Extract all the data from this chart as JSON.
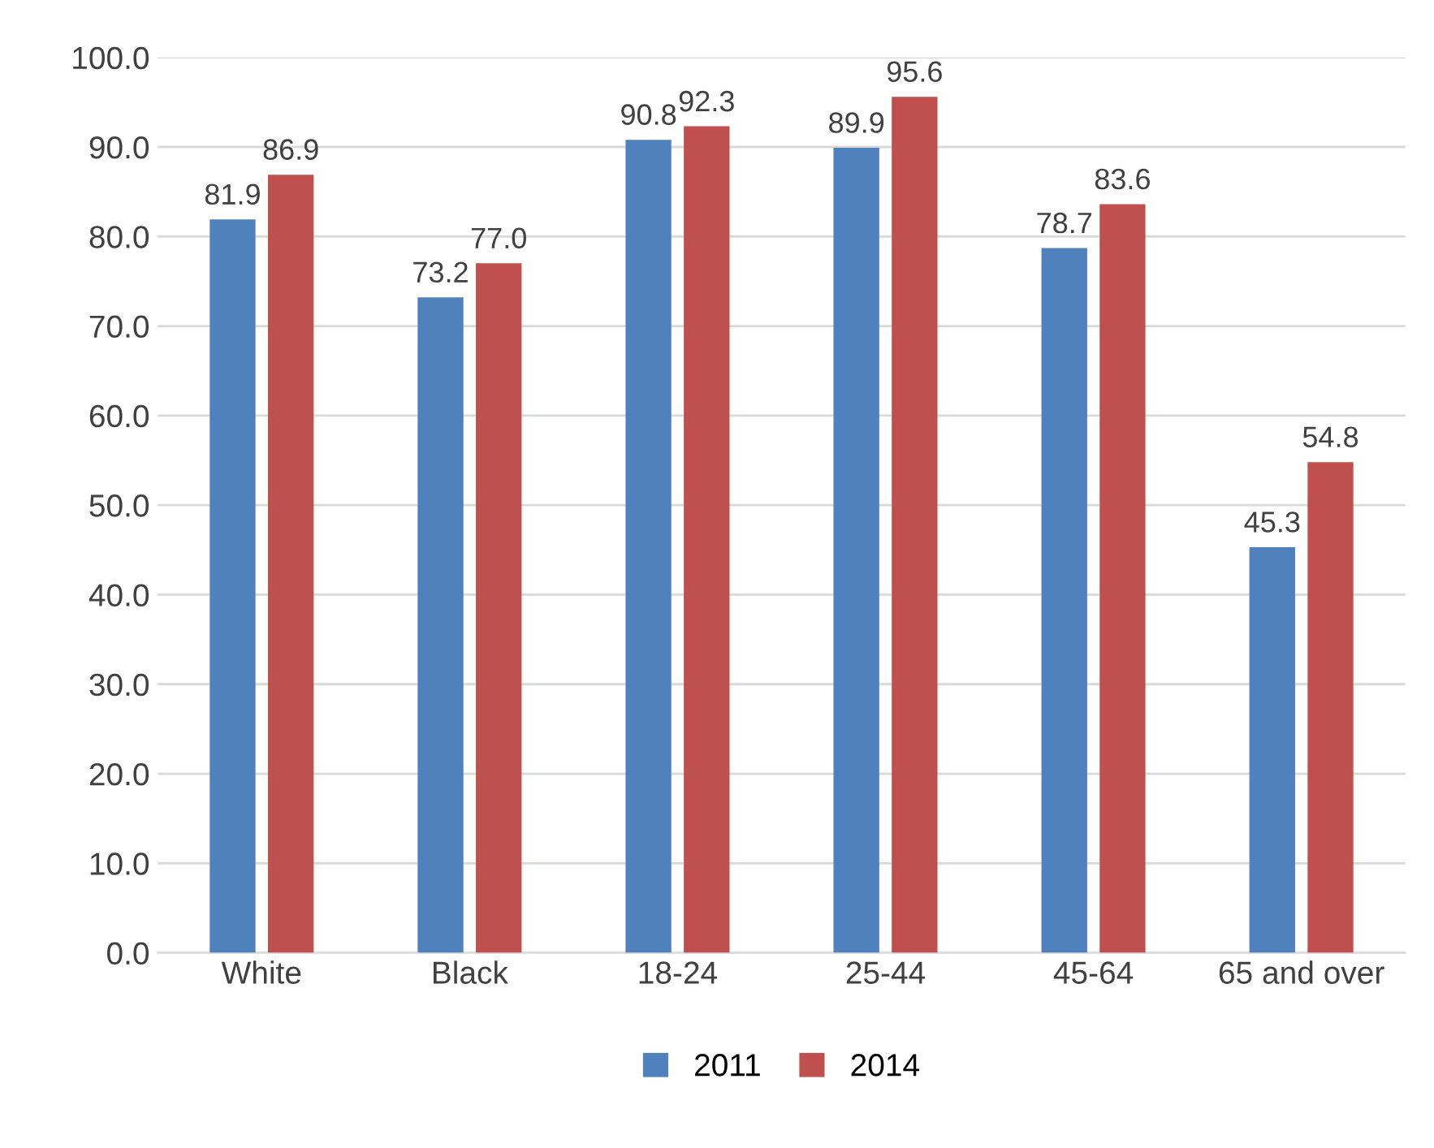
{
  "chart_data": {
    "type": "bar",
    "categories": [
      "White",
      "Black",
      "18-24",
      "25-44",
      "45-64",
      "65 and over"
    ],
    "series": [
      {
        "name": "2011",
        "color": "#4f81bd",
        "values": [
          81.9,
          73.2,
          90.8,
          89.9,
          78.7,
          45.3
        ],
        "value_labels": [
          "81.9",
          "73.2",
          "90.8",
          "89.9",
          "78.7",
          "45.3"
        ]
      },
      {
        "name": "2014",
        "color": "#c0504d",
        "values": [
          86.9,
          77.0,
          92.3,
          95.6,
          83.6,
          54.8
        ],
        "value_labels": [
          "86.9",
          "77.0",
          "92.3",
          "95.6",
          "83.6",
          "54.8"
        ]
      }
    ],
    "ylim": [
      0,
      100
    ],
    "yticks": [
      {
        "value": 0,
        "label": "0.0"
      },
      {
        "value": 10,
        "label": "10.0"
      },
      {
        "value": 20,
        "label": "20.0"
      },
      {
        "value": 30,
        "label": "30.0"
      },
      {
        "value": 40,
        "label": "40.0"
      },
      {
        "value": 50,
        "label": "50.0"
      },
      {
        "value": 60,
        "label": "60.0"
      },
      {
        "value": 70,
        "label": "70.0"
      },
      {
        "value": 80,
        "label": "80.0"
      },
      {
        "value": 90,
        "label": "90.0"
      },
      {
        "value": 100,
        "label": "100.0"
      }
    ],
    "grid": "y",
    "legend": "bottom"
  }
}
